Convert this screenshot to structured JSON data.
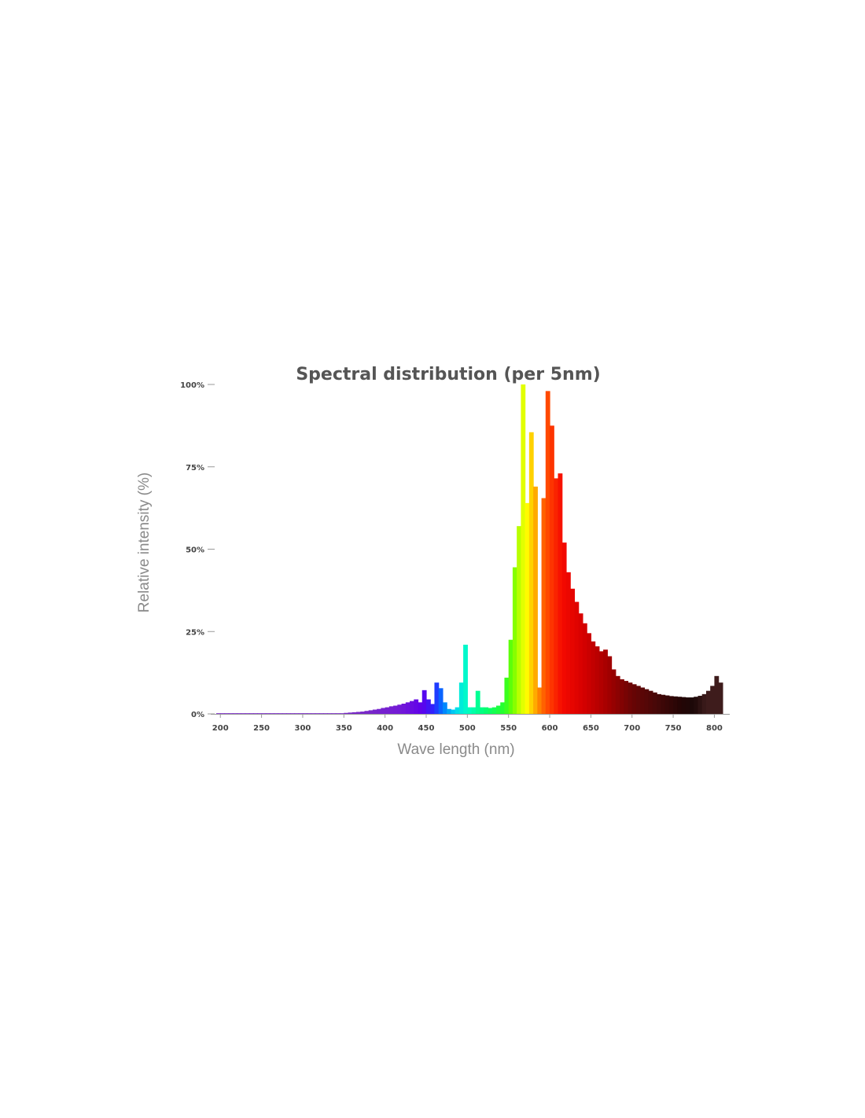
{
  "chart_data": {
    "type": "bar",
    "title": "Spectral distribution (per 5nm)",
    "xlabel": "Wave length (nm)",
    "ylabel": "Relative intensity (%)",
    "xlim": [
      195,
      810
    ],
    "ylim": [
      0,
      100
    ],
    "bin_width_nm": 5,
    "x_ticks": [
      {
        "value": 200,
        "label": "200"
      },
      {
        "value": 250,
        "label": "250"
      },
      {
        "value": 300,
        "label": "300"
      },
      {
        "value": 350,
        "label": "350"
      },
      {
        "value": 400,
        "label": "400"
      },
      {
        "value": 450,
        "label": "450"
      },
      {
        "value": 500,
        "label": "500"
      },
      {
        "value": 550,
        "label": "550"
      },
      {
        "value": 600,
        "label": "600"
      },
      {
        "value": 650,
        "label": "650"
      },
      {
        "value": 700,
        "label": "700"
      },
      {
        "value": 750,
        "label": "750"
      },
      {
        "value": 800,
        "label": "800"
      }
    ],
    "y_ticks": [
      {
        "value": 0,
        "label": "0%"
      },
      {
        "value": 25,
        "label": "25%"
      },
      {
        "value": 50,
        "label": "50%"
      },
      {
        "value": 75,
        "label": "75%"
      },
      {
        "value": 100,
        "label": "100%"
      }
    ],
    "grid": false,
    "legend": "none",
    "x": [
      195,
      200,
      205,
      210,
      215,
      220,
      225,
      230,
      235,
      240,
      245,
      250,
      255,
      260,
      265,
      270,
      275,
      280,
      285,
      290,
      295,
      300,
      305,
      310,
      315,
      320,
      325,
      330,
      335,
      340,
      345,
      350,
      355,
      360,
      365,
      370,
      375,
      380,
      385,
      390,
      395,
      400,
      405,
      410,
      415,
      420,
      425,
      430,
      435,
      440,
      445,
      450,
      455,
      460,
      465,
      470,
      475,
      480,
      485,
      490,
      495,
      500,
      505,
      510,
      515,
      520,
      525,
      530,
      535,
      540,
      545,
      550,
      555,
      560,
      565,
      570,
      575,
      580,
      585,
      590,
      595,
      600,
      605,
      610,
      615,
      620,
      625,
      630,
      635,
      640,
      645,
      650,
      655,
      660,
      665,
      670,
      675,
      680,
      685,
      690,
      695,
      700,
      705,
      710,
      715,
      720,
      725,
      730,
      735,
      740,
      745,
      750,
      755,
      760,
      765,
      770,
      775,
      780,
      785,
      790,
      795,
      800,
      805
    ],
    "values": [
      0.2,
      0.2,
      0.2,
      0.2,
      0.2,
      0.2,
      0.2,
      0.2,
      0.2,
      0.2,
      0.2,
      0.2,
      0.2,
      0.2,
      0.2,
      0.2,
      0.2,
      0.2,
      0.2,
      0.2,
      0.2,
      0.2,
      0.2,
      0.2,
      0.2,
      0.2,
      0.2,
      0.2,
      0.2,
      0.2,
      0.2,
      0.3,
      0.4,
      0.5,
      0.6,
      0.7,
      0.9,
      1.1,
      1.3,
      1.5,
      1.8,
      2.0,
      2.3,
      2.5,
      2.8,
      3.1,
      3.5,
      3.9,
      4.4,
      3.5,
      7.2,
      4.4,
      3.0,
      9.5,
      7.8,
      3.5,
      1.5,
      1.3,
      2.0,
      9.5,
      21.0,
      2.0,
      2.0,
      7.0,
      2.0,
      2.0,
      1.8,
      2.0,
      2.5,
      3.5,
      11.0,
      22.5,
      44.5,
      57.0,
      100.0,
      64.0,
      85.5,
      69.0,
      8.0,
      65.5,
      98.0,
      87.5,
      71.5,
      73.0,
      52.0,
      43.0,
      38.0,
      34.0,
      30.5,
      27.5,
      24.5,
      22.0,
      20.5,
      19.0,
      19.5,
      17.5,
      13.5,
      11.5,
      10.5,
      10.0,
      9.5,
      9.0,
      8.5,
      8.0,
      7.5,
      7.0,
      6.5,
      6.0,
      5.8,
      5.6,
      5.4,
      5.3,
      5.2,
      5.1,
      5.0,
      5.0,
      5.2,
      5.5,
      6.0,
      7.0,
      8.5,
      11.5,
      9.5
    ]
  }
}
